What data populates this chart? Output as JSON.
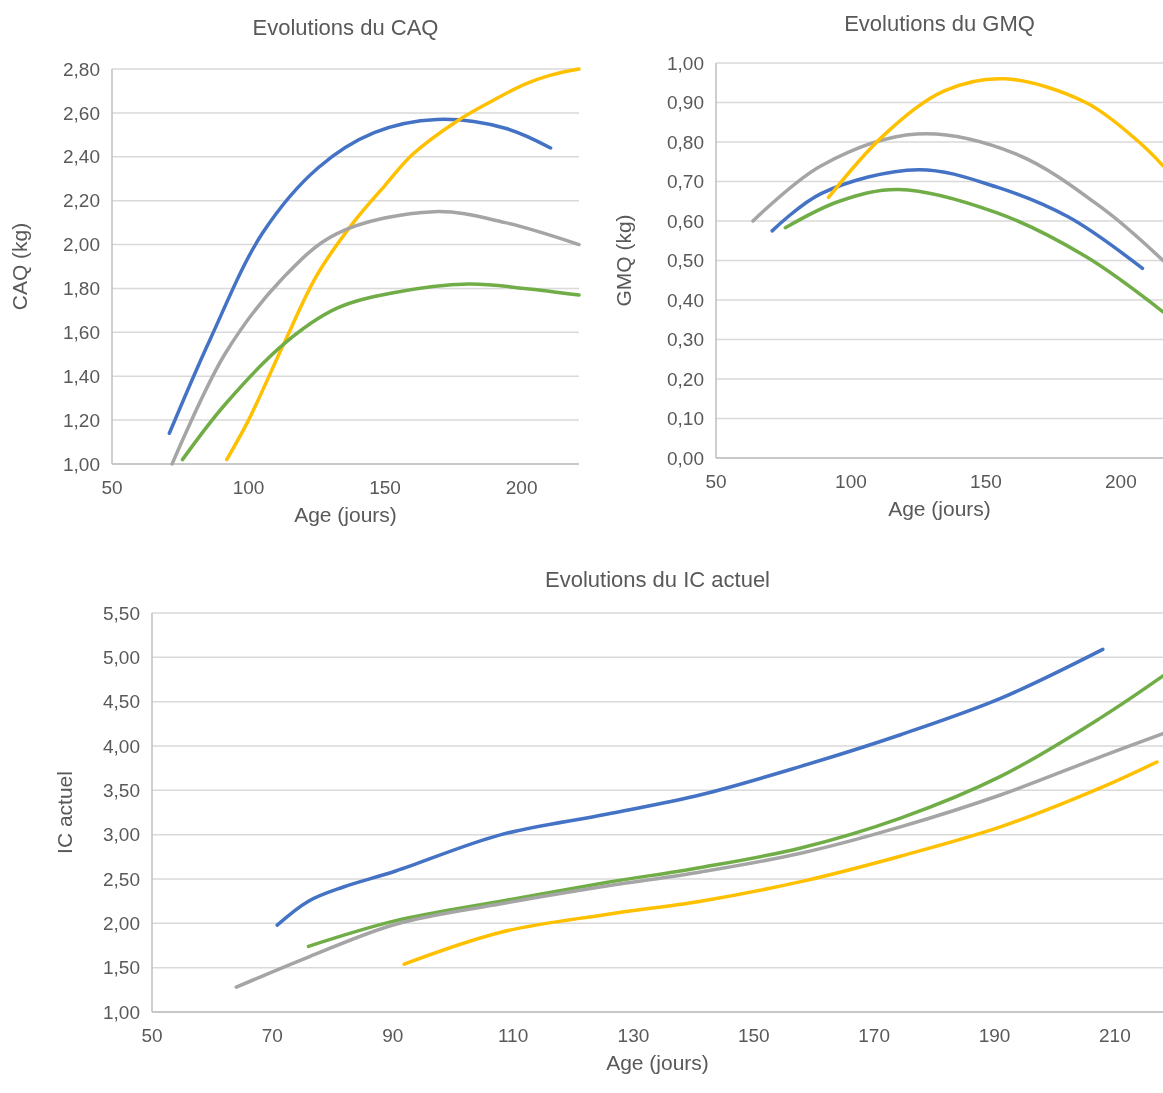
{
  "chart_data": [
    {
      "type": "line",
      "title": "Evolutions du CAQ",
      "xlabel": "Age (jours)",
      "ylabel": "CAQ (kg)",
      "xlim": [
        50,
        221
      ],
      "xticks": [
        50,
        100,
        150,
        200
      ],
      "ylim": [
        1,
        2.8
      ],
      "yticks": [
        {
          "value": 1,
          "label": "1,00"
        },
        {
          "value": 1.2,
          "label": "1,20"
        },
        {
          "value": 1.4,
          "label": "1,40"
        },
        {
          "value": 1.6,
          "label": "1,60"
        },
        {
          "value": 1.8,
          "label": "1,80"
        },
        {
          "value": 2,
          "label": "2,00"
        },
        {
          "value": 2.2,
          "label": "2,20"
        },
        {
          "value": 2.4,
          "label": "2,40"
        },
        {
          "value": 2.6,
          "label": "2,60"
        },
        {
          "value": 2.8,
          "label": "2,80"
        }
      ],
      "grid": "y",
      "marker": "none",
      "line_style": "solid",
      "series": [
        {
          "color": "#4472c4",
          "x": [
            71,
            86,
            105,
            125.5,
            146,
            169,
            194,
            210.6
          ],
          "values": [
            1.14,
            1.57,
            2.05,
            2.35,
            2.51,
            2.57,
            2.53,
            2.44
          ]
        },
        {
          "color": "#ffc000",
          "x": [
            92,
            100,
            113,
            125,
            139,
            150,
            160,
            176,
            190,
            201,
            210,
            221
          ],
          "values": [
            1.02,
            1.2,
            1.55,
            1.86,
            2.11,
            2.27,
            2.41,
            2.56,
            2.66,
            2.73,
            2.77,
            2.8
          ]
        },
        {
          "color": "#a5a5a5",
          "x": [
            72,
            91.3,
            112,
            132.4,
            168,
            194,
            221
          ],
          "values": [
            1,
            1.5,
            1.84,
            2.05,
            2.15,
            2.1,
            2
          ]
        },
        {
          "color": "#70ad47",
          "x": [
            75.8,
            91.3,
            113.2,
            132.4,
            153,
            180.5,
            201,
            221
          ],
          "values": [
            1.02,
            1.27,
            1.55,
            1.71,
            1.78,
            1.82,
            1.8,
            1.77
          ]
        }
      ]
    },
    {
      "type": "line",
      "title": "Evolutions du GMQ",
      "xlabel": "Age (jours)",
      "ylabel": "GMQ (kg)",
      "xlim": [
        50,
        215.6
      ],
      "xticks": [
        50,
        100,
        150,
        200
      ],
      "ylim": [
        0,
        1
      ],
      "yticks": [
        {
          "value": 0,
          "label": "0,00"
        },
        {
          "value": 0.1,
          "label": "0,10"
        },
        {
          "value": 0.2,
          "label": "0,20"
        },
        {
          "value": 0.3,
          "label": "0,30"
        },
        {
          "value": 0.4,
          "label": "0,40"
        },
        {
          "value": 0.5,
          "label": "0,50"
        },
        {
          "value": 0.6,
          "label": "0,60"
        },
        {
          "value": 0.7,
          "label": "0,70"
        },
        {
          "value": 0.8,
          "label": "0,80"
        },
        {
          "value": 0.9,
          "label": "0,90"
        },
        {
          "value": 1,
          "label": "1,00"
        }
      ],
      "grid": "y",
      "marker": "none",
      "line_style": "solid",
      "series": [
        {
          "color": "#a5a5a5",
          "x": [
            63.7,
            89,
            124.4,
            161,
            193.6,
            215.6
          ],
          "values": [
            0.6,
            0.74,
            0.82,
            0.77,
            0.63,
            0.5
          ]
        },
        {
          "color": "#4472c4",
          "x": [
            70.8,
            89.1,
            125,
            154.4,
            180.6,
            208
          ],
          "values": [
            0.575,
            0.67,
            0.73,
            0.685,
            0.61,
            0.48
          ]
        },
        {
          "color": "#70ad47",
          "x": [
            75.7,
            95.7,
            117.8,
            154.4,
            187,
            215.6
          ],
          "values": [
            0.583,
            0.65,
            0.68,
            0.62,
            0.51,
            0.37
          ]
        },
        {
          "color": "#ffc000",
          "x": [
            91.7,
            112.6,
            134.8,
            157,
            187,
            206.7,
            215.6
          ],
          "values": [
            0.66,
            0.82,
            0.93,
            0.96,
            0.9,
            0.8,
            0.74
          ]
        }
      ]
    },
    {
      "type": "line",
      "title": "Evolutions du IC actuel",
      "xlabel": "Age (jours)",
      "ylabel": "IC actuel",
      "xlim": [
        50,
        218
      ],
      "xticks": [
        50,
        70,
        90,
        110,
        130,
        150,
        170,
        190,
        210
      ],
      "ylim": [
        1,
        5.5
      ],
      "yticks": [
        {
          "value": 1,
          "label": "1,00"
        },
        {
          "value": 1.5,
          "label": "1,50"
        },
        {
          "value": 2,
          "label": "2,00"
        },
        {
          "value": 2.5,
          "label": "2,50"
        },
        {
          "value": 3,
          "label": "3,00"
        },
        {
          "value": 3.5,
          "label": "3,50"
        },
        {
          "value": 4,
          "label": "4,00"
        },
        {
          "value": 4.5,
          "label": "4,50"
        },
        {
          "value": 5,
          "label": "5,00"
        },
        {
          "value": 5.5,
          "label": "5,50"
        }
      ],
      "grid": "y",
      "marker": "none",
      "line_style": "solid",
      "series": [
        {
          "color": "#4472c4",
          "x": [
            70.8,
            76,
            81.8,
            90.5,
            108,
            125.5,
            141.2,
            157.8,
            174.5,
            191.1,
            208
          ],
          "values": [
            1.98,
            2.25,
            2.41,
            2.59,
            3,
            3.23,
            3.45,
            3.77,
            4.13,
            4.54,
            5.09
          ]
        },
        {
          "color": "#70ad47",
          "x": [
            76,
            90.5,
            108,
            125.5,
            141.2,
            157.8,
            174.5,
            191.1,
            207.7,
            218
          ],
          "values": [
            1.74,
            2.03,
            2.25,
            2.46,
            2.63,
            2.85,
            3.19,
            3.66,
            4.32,
            4.79
          ]
        },
        {
          "color": "#a5a5a5",
          "x": [
            64,
            76,
            90.5,
            108,
            125.5,
            141.2,
            157.8,
            174.5,
            191.1,
            207.7,
            218
          ],
          "values": [
            1.28,
            1.62,
            1.99,
            2.22,
            2.42,
            2.58,
            2.79,
            3.09,
            3.45,
            3.88,
            4.14
          ]
        },
        {
          "color": "#ffc000",
          "x": [
            91.9,
            108,
            125.5,
            141.2,
            157.8,
            174.5,
            191.1,
            207.7,
            217
          ],
          "values": [
            1.54,
            1.9,
            2.1,
            2.25,
            2.47,
            2.76,
            3.09,
            3.53,
            3.82
          ]
        }
      ]
    }
  ]
}
